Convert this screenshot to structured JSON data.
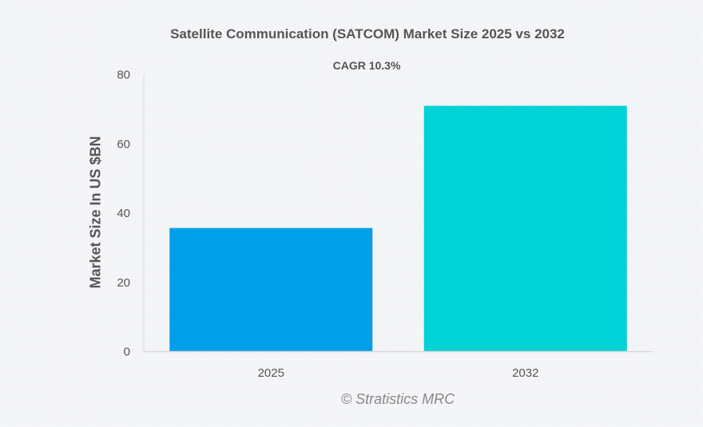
{
  "chart_data": {
    "type": "bar",
    "title": "Satellite Communication (SATCOM) Market Size 2025 vs 2032",
    "subtitle": "CAGR 10.3%",
    "categories": [
      "2025",
      "2032"
    ],
    "values": [
      35.7,
      71.0
    ],
    "colors": [
      "#009fe8",
      "#00d2d5"
    ],
    "xlabel": "",
    "ylabel": "Market Size In US $BN",
    "ylim": [
      0,
      80
    ],
    "yticks": [
      0,
      20,
      40,
      60,
      80
    ],
    "grid": false,
    "legend": "none"
  },
  "credit": "© Stratistics MRC"
}
